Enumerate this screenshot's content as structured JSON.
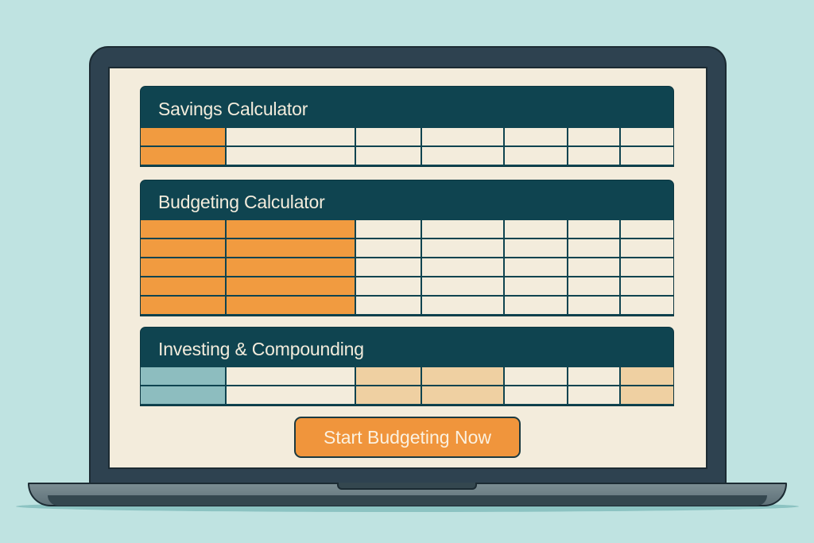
{
  "colors": {
    "background": "#bfe3e1",
    "header": "#0f4450",
    "orange": "#f19b40",
    "cream": "#f3ecdc",
    "teal": "#8dbdbf",
    "peach": "#efd0a2",
    "button": "#f0953c"
  },
  "panels": [
    {
      "title": "Savings Calculator",
      "rows": [
        [
          "o",
          "c",
          "c",
          "c",
          "c",
          "c",
          "c"
        ],
        [
          "o",
          "c",
          "c",
          "c",
          "c",
          "c",
          "c"
        ]
      ]
    },
    {
      "title": "Budgeting Calculator",
      "rows": [
        [
          "o",
          "o",
          "c",
          "c",
          "c",
          "c",
          "c"
        ],
        [
          "o",
          "o",
          "c",
          "c",
          "c",
          "c",
          "c"
        ],
        [
          "o",
          "o",
          "c",
          "c",
          "c",
          "c",
          "c"
        ],
        [
          "o",
          "o",
          "c",
          "c",
          "c",
          "c",
          "c"
        ],
        [
          "o",
          "o",
          "c",
          "c",
          "c",
          "c",
          "c"
        ]
      ]
    },
    {
      "title": "Investing & Compounding",
      "rows": [
        [
          "t",
          "c",
          "p",
          "p",
          "c",
          "c",
          "p"
        ],
        [
          "t",
          "c",
          "p",
          "p",
          "c",
          "c",
          "p"
        ]
      ]
    }
  ],
  "cta": {
    "label": "Start Budgeting Now"
  }
}
